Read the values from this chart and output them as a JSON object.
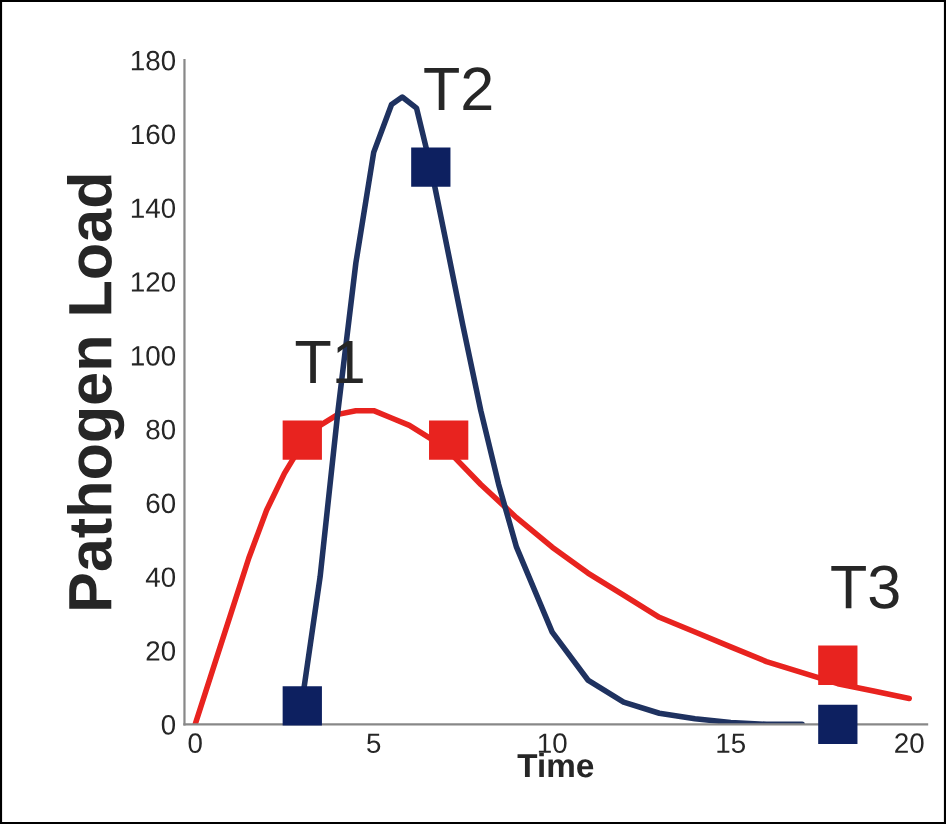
{
  "chart_data": {
    "type": "line",
    "xlabel": "Time",
    "ylabel": "Pathogen Load",
    "xlim": [
      -0.3,
      20.5
    ],
    "ylim": [
      0,
      180
    ],
    "xticks": [
      0,
      5,
      10,
      15,
      20
    ],
    "yticks": [
      0,
      20,
      40,
      60,
      80,
      100,
      120,
      140,
      160,
      180
    ],
    "grid": false,
    "legend": false,
    "line_style": "solid",
    "series": [
      {
        "color": "#e8231f",
        "x": [
          0,
          0.5,
          1,
          1.5,
          2,
          2.5,
          3,
          3.5,
          4,
          4.5,
          5,
          5.5,
          6,
          7,
          8,
          9,
          10,
          11,
          12,
          13,
          14,
          15,
          16,
          17,
          18,
          19,
          20
        ],
        "values": [
          0,
          15,
          30,
          45,
          58,
          68,
          76,
          81,
          84,
          85,
          85,
          83,
          81,
          75,
          65,
          56,
          48,
          41,
          35,
          29,
          25,
          21,
          17,
          14,
          11,
          9,
          7
        ]
      },
      {
        "color": "#1f3260",
        "x": [
          2.9,
          3.5,
          4,
          4.5,
          5,
          5.5,
          5.8,
          6.2,
          6.6,
          7,
          7.5,
          8,
          8.5,
          9,
          10,
          11,
          12,
          13,
          14,
          15,
          16,
          17
        ],
        "values": [
          0,
          40,
          85,
          125,
          155,
          168,
          170,
          167,
          151,
          132,
          108,
          85,
          65,
          48,
          25,
          12,
          6,
          3,
          1.5,
          0.5,
          0,
          0
        ]
      },
      {
        "type": "scatter",
        "marker": "square",
        "color": "#e8231f",
        "x": [
          3,
          7.1,
          18
        ],
        "values": [
          77,
          77,
          16
        ]
      },
      {
        "type": "scatter",
        "marker": "square",
        "color": "#0d2060",
        "x": [
          3,
          6.6,
          18
        ],
        "values": [
          5,
          151,
          0
        ]
      }
    ],
    "annotations": [
      {
        "text": "T1",
        "x": 3,
        "y": 77
      },
      {
        "text": "T2",
        "x": 6.6,
        "y": 151
      },
      {
        "text": "T3",
        "x": 18,
        "y": 16
      }
    ]
  }
}
